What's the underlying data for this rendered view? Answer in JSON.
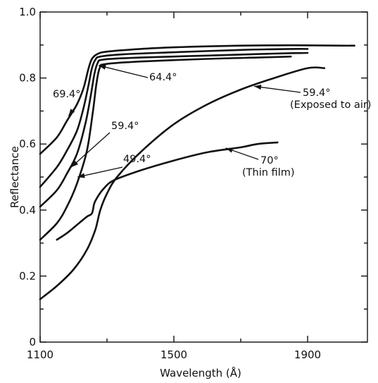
{
  "chart_data": {
    "type": "line",
    "title": "",
    "xlabel": "Wavelength (Å)",
    "ylabel": "Reflectance",
    "xlim": [
      1100,
      2050
    ],
    "ylim": [
      0,
      1.0
    ],
    "x_ticks": [
      1100,
      1500,
      1900
    ],
    "x_tick_labels": [
      "1100",
      "1500",
      "1900"
    ],
    "x_minor_ticks": [
      1300,
      1700
    ],
    "y_ticks": [
      0,
      0.2,
      0.4,
      0.6,
      0.8,
      1.0
    ],
    "y_tick_labels": [
      "0",
      "0.2",
      "0.4",
      "0.6",
      "0.8",
      "1.0"
    ],
    "y_minor_ticks": [
      0.1,
      0.3,
      0.5,
      0.7,
      0.9
    ],
    "grid": false,
    "series": [
      {
        "name": "69.4°",
        "points": [
          [
            1100,
            0.57
          ],
          [
            1150,
            0.62
          ],
          [
            1180,
            0.67
          ],
          [
            1210,
            0.72
          ],
          [
            1230,
            0.77
          ],
          [
            1245,
            0.83
          ],
          [
            1255,
            0.858
          ],
          [
            1270,
            0.872
          ],
          [
            1300,
            0.88
          ],
          [
            1400,
            0.888
          ],
          [
            1500,
            0.893
          ],
          [
            1600,
            0.896
          ],
          [
            1700,
            0.898
          ],
          [
            1800,
            0.899
          ],
          [
            1900,
            0.899
          ],
          [
            2000,
            0.898
          ],
          [
            2040,
            0.898
          ]
        ]
      },
      {
        "name": "64.4°",
        "points": [
          [
            1100,
            0.47
          ],
          [
            1150,
            0.53
          ],
          [
            1180,
            0.58
          ],
          [
            1210,
            0.64
          ],
          [
            1230,
            0.71
          ],
          [
            1245,
            0.78
          ],
          [
            1255,
            0.83
          ],
          [
            1265,
            0.855
          ],
          [
            1280,
            0.865
          ],
          [
            1350,
            0.872
          ],
          [
            1500,
            0.878
          ],
          [
            1700,
            0.885
          ],
          [
            1850,
            0.888
          ],
          [
            1900,
            0.888
          ]
        ]
      },
      {
        "name": "59.4°",
        "points": [
          [
            1100,
            0.41
          ],
          [
            1150,
            0.46
          ],
          [
            1180,
            0.51
          ],
          [
            1210,
            0.57
          ],
          [
            1235,
            0.66
          ],
          [
            1252,
            0.75
          ],
          [
            1262,
            0.81
          ],
          [
            1272,
            0.845
          ],
          [
            1290,
            0.856
          ],
          [
            1400,
            0.862
          ],
          [
            1600,
            0.868
          ],
          [
            1800,
            0.874
          ],
          [
            1900,
            0.876
          ]
        ]
      },
      {
        "name": "49.4°",
        "points": [
          [
            1100,
            0.31
          ],
          [
            1150,
            0.36
          ],
          [
            1180,
            0.41
          ],
          [
            1210,
            0.48
          ],
          [
            1240,
            0.58
          ],
          [
            1258,
            0.7
          ],
          [
            1268,
            0.78
          ],
          [
            1278,
            0.83
          ],
          [
            1295,
            0.842
          ],
          [
            1400,
            0.85
          ],
          [
            1600,
            0.858
          ],
          [
            1750,
            0.862
          ],
          [
            1850,
            0.865
          ]
        ]
      },
      {
        "name": "59.4° (Exposed to air)",
        "points": [
          [
            1100,
            0.13
          ],
          [
            1150,
            0.17
          ],
          [
            1200,
            0.22
          ],
          [
            1240,
            0.28
          ],
          [
            1265,
            0.34
          ],
          [
            1280,
            0.4
          ],
          [
            1300,
            0.45
          ],
          [
            1330,
            0.5
          ],
          [
            1400,
            0.575
          ],
          [
            1500,
            0.66
          ],
          [
            1600,
            0.72
          ],
          [
            1700,
            0.765
          ],
          [
            1800,
            0.8
          ],
          [
            1900,
            0.83
          ],
          [
            1950,
            0.83
          ]
        ]
      },
      {
        "name": "70° (Thin film)",
        "points": [
          [
            1150,
            0.31
          ],
          [
            1180,
            0.33
          ],
          [
            1210,
            0.355
          ],
          [
            1240,
            0.38
          ],
          [
            1255,
            0.39
          ],
          [
            1262,
            0.42
          ],
          [
            1272,
            0.44
          ],
          [
            1290,
            0.465
          ],
          [
            1320,
            0.49
          ],
          [
            1400,
            0.52
          ],
          [
            1500,
            0.55
          ],
          [
            1600,
            0.575
          ],
          [
            1700,
            0.59
          ],
          [
            1750,
            0.6
          ],
          [
            1810,
            0.605
          ]
        ]
      }
    ],
    "annotations": [
      {
        "text": "69.4°",
        "target": [
          1185,
          0.685
        ]
      },
      {
        "text": "64.4°",
        "target": [
          1275,
          0.838
        ]
      },
      {
        "text": "59.4°",
        "target": [
          1193,
          0.53
        ]
      },
      {
        "text": "49.4°",
        "target": [
          1212,
          0.5
        ]
      },
      {
        "text": "59.4°",
        "line2": "(Exposed to air)",
        "target": [
          1740,
          0.775
        ]
      },
      {
        "text": "70°",
        "line2": "(Thin film)",
        "target": [
          1655,
          0.588
        ]
      }
    ]
  }
}
